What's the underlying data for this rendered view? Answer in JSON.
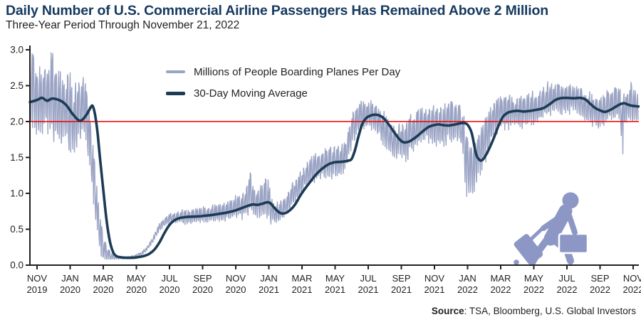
{
  "header": {
    "title": "Daily Number of U.S. Commercial Airline Passengers Has Remained Above 2 Million",
    "subtitle": "Three-Year Period Through November 21, 2022"
  },
  "source": {
    "label": "Source",
    "rest": ": TSA, Bloomberg, U.S. Global Investors"
  },
  "colors": {
    "title": "#163a5f",
    "daily_line": "#9ba4c4",
    "ma_line": "#1c3b55",
    "reference_line": "#ee0000",
    "axis": "#231f20",
    "traveler_icon": "#8c97c5",
    "background": "#ffffff"
  },
  "icons": {
    "traveler": "traveler-with-luggage-icon"
  },
  "chart_data": {
    "type": "line",
    "title": "Daily Number of U.S. Commercial Airline Passengers Has Remained Above 2 Million",
    "subtitle": "Three-Year Period Through November 21, 2022",
    "units": "millions of passengers per day",
    "legend_position": "top-center-left",
    "grid": false,
    "series": [
      {
        "name": "Millions of People Boarding Planes Per Day",
        "kind": "daily",
        "color": "#9ba4c4",
        "width": 1.4
      },
      {
        "name": "30-Day Moving Average",
        "kind": "moving_average",
        "color": "#1c3b55",
        "width": 3.6
      }
    ],
    "reference_line": {
      "value": 2.0,
      "color": "#ee0000"
    },
    "y_axis": {
      "min": 0.0,
      "max": 3.0,
      "step": 0.5,
      "labels": [
        "0.0",
        "0.5",
        "1.0",
        "1.5",
        "2.0",
        "2.5",
        "3.0"
      ]
    },
    "x_axis": {
      "ticks": [
        {
          "m": "NOV",
          "y": "2019"
        },
        {
          "m": "JAN",
          "y": "2020"
        },
        {
          "m": "MAR",
          "y": "2020"
        },
        {
          "m": "MAY",
          "y": "2020"
        },
        {
          "m": "JUL",
          "y": "2020"
        },
        {
          "m": "SEP",
          "y": "2020"
        },
        {
          "m": "NOV",
          "y": "2020"
        },
        {
          "m": "JAN",
          "y": "2021"
        },
        {
          "m": "MAR",
          "y": "2021"
        },
        {
          "m": "MAY",
          "y": "2021"
        },
        {
          "m": "JUL",
          "y": "2021"
        },
        {
          "m": "SEP",
          "y": "2021"
        },
        {
          "m": "NOV",
          "y": "2021"
        },
        {
          "m": "JAN",
          "y": "2022"
        },
        {
          "m": "MAR",
          "y": "2022"
        },
        {
          "m": "MAY",
          "y": "2022"
        },
        {
          "m": "JUL",
          "y": "2022"
        },
        {
          "m": "SEP",
          "y": "2022"
        },
        {
          "m": "NOV",
          "y": "2022"
        }
      ]
    },
    "time_axis": {
      "t_unit": "months since Nov 2019",
      "start_t": -0.43,
      "end_t": 36.32
    },
    "moving_average_points": [
      [
        -0.43,
        2.27
      ],
      [
        0,
        2.3
      ],
      [
        0.3,
        2.33
      ],
      [
        0.6,
        2.29
      ],
      [
        0.9,
        2.32
      ],
      [
        1.2,
        2.31
      ],
      [
        1.5,
        2.28
      ],
      [
        1.8,
        2.22
      ],
      [
        2.1,
        2.12
      ],
      [
        2.4,
        2.04
      ],
      [
        2.6,
        2.01
      ],
      [
        2.8,
        2.04
      ],
      [
        3.0,
        2.1
      ],
      [
        3.2,
        2.18
      ],
      [
        3.35,
        2.22
      ],
      [
        3.5,
        2.1
      ],
      [
        3.65,
        1.85
      ],
      [
        3.8,
        1.5
      ],
      [
        4.0,
        1.05
      ],
      [
        4.2,
        0.62
      ],
      [
        4.4,
        0.33
      ],
      [
        4.6,
        0.18
      ],
      [
        4.8,
        0.125
      ],
      [
        5.1,
        0.108
      ],
      [
        5.5,
        0.102
      ],
      [
        5.9,
        0.105
      ],
      [
        6.2,
        0.115
      ],
      [
        6.5,
        0.13
      ],
      [
        6.8,
        0.16
      ],
      [
        7.1,
        0.22
      ],
      [
        7.4,
        0.32
      ],
      [
        7.7,
        0.45
      ],
      [
        8.0,
        0.56
      ],
      [
        8.3,
        0.625
      ],
      [
        8.6,
        0.655
      ],
      [
        9.0,
        0.67
      ],
      [
        9.4,
        0.675
      ],
      [
        9.8,
        0.68
      ],
      [
        10.2,
        0.69
      ],
      [
        10.6,
        0.7
      ],
      [
        11.0,
        0.715
      ],
      [
        11.4,
        0.73
      ],
      [
        11.8,
        0.75
      ],
      [
        12.2,
        0.78
      ],
      [
        12.6,
        0.815
      ],
      [
        13.0,
        0.845
      ],
      [
        13.3,
        0.84
      ],
      [
        13.6,
        0.855
      ],
      [
        13.9,
        0.875
      ],
      [
        14.1,
        0.86
      ],
      [
        14.4,
        0.78
      ],
      [
        14.7,
        0.725
      ],
      [
        15.0,
        0.725
      ],
      [
        15.3,
        0.77
      ],
      [
        15.6,
        0.85
      ],
      [
        15.9,
        0.97
      ],
      [
        16.2,
        1.07
      ],
      [
        16.5,
        1.16
      ],
      [
        16.8,
        1.25
      ],
      [
        17.1,
        1.32
      ],
      [
        17.4,
        1.375
      ],
      [
        17.7,
        1.415
      ],
      [
        18.0,
        1.435
      ],
      [
        18.4,
        1.44
      ],
      [
        18.8,
        1.455
      ],
      [
        19.0,
        1.48
      ],
      [
        19.2,
        1.6
      ],
      [
        19.4,
        1.78
      ],
      [
        19.6,
        1.94
      ],
      [
        19.8,
        2.03
      ],
      [
        20.1,
        2.08
      ],
      [
        20.5,
        2.095
      ],
      [
        20.8,
        2.07
      ],
      [
        21.0,
        2.03
      ],
      [
        21.3,
        1.94
      ],
      [
        21.6,
        1.84
      ],
      [
        21.9,
        1.75
      ],
      [
        22.15,
        1.71
      ],
      [
        22.45,
        1.72
      ],
      [
        22.75,
        1.76
      ],
      [
        23.05,
        1.815
      ],
      [
        23.35,
        1.875
      ],
      [
        23.65,
        1.925
      ],
      [
        23.95,
        1.95
      ],
      [
        24.25,
        1.96
      ],
      [
        24.55,
        1.95
      ],
      [
        24.85,
        1.945
      ],
      [
        25.15,
        1.955
      ],
      [
        25.45,
        1.97
      ],
      [
        25.75,
        1.98
      ],
      [
        26.0,
        1.955
      ],
      [
        26.25,
        1.84
      ],
      [
        26.5,
        1.56
      ],
      [
        26.7,
        1.47
      ],
      [
        26.9,
        1.465
      ],
      [
        27.15,
        1.55
      ],
      [
        27.4,
        1.67
      ],
      [
        27.65,
        1.81
      ],
      [
        27.9,
        1.96
      ],
      [
        28.15,
        2.07
      ],
      [
        28.4,
        2.12
      ],
      [
        28.65,
        2.14
      ],
      [
        29.0,
        2.15
      ],
      [
        29.4,
        2.14
      ],
      [
        29.8,
        2.15
      ],
      [
        30.2,
        2.165
      ],
      [
        30.6,
        2.19
      ],
      [
        31.0,
        2.25
      ],
      [
        31.3,
        2.3
      ],
      [
        31.6,
        2.325
      ],
      [
        32.0,
        2.33
      ],
      [
        32.4,
        2.325
      ],
      [
        32.8,
        2.33
      ],
      [
        33.1,
        2.31
      ],
      [
        33.4,
        2.25
      ],
      [
        33.7,
        2.19
      ],
      [
        34.0,
        2.155
      ],
      [
        34.3,
        2.135
      ],
      [
        34.6,
        2.16
      ],
      [
        34.9,
        2.2
      ],
      [
        35.2,
        2.24
      ],
      [
        35.45,
        2.255
      ],
      [
        35.7,
        2.235
      ],
      [
        35.95,
        2.22
      ],
      [
        36.32,
        2.21
      ]
    ],
    "daily_model": {
      "lead_months": 0.5,
      "floor": 0.085,
      "ceiling": 2.96,
      "weekly_pattern": [
        0.95,
        -0.6,
        -0.95,
        0.4,
        0.85,
        -1.0,
        0.8
      ],
      "amplitude_points": [
        [
          -0.43,
          0.42
        ],
        [
          0.5,
          0.44
        ],
        [
          1.0,
          0.46
        ],
        [
          1.5,
          0.45
        ],
        [
          2.0,
          0.44
        ],
        [
          2.5,
          0.42
        ],
        [
          3.0,
          0.4
        ],
        [
          3.3,
          0.36
        ],
        [
          3.6,
          0.3
        ],
        [
          4.0,
          0.18
        ],
        [
          4.4,
          0.08
        ],
        [
          4.8,
          0.03
        ],
        [
          5.3,
          0.015
        ],
        [
          6.0,
          0.018
        ],
        [
          6.5,
          0.025
        ],
        [
          7.0,
          0.035
        ],
        [
          7.5,
          0.05
        ],
        [
          8.0,
          0.06
        ],
        [
          8.5,
          0.07
        ],
        [
          9.0,
          0.09
        ],
        [
          10.0,
          0.1
        ],
        [
          11.0,
          0.11
        ],
        [
          12.0,
          0.13
        ],
        [
          12.9,
          0.18
        ],
        [
          13.9,
          0.18
        ],
        [
          14.5,
          0.13
        ],
        [
          15.3,
          0.14
        ],
        [
          16.0,
          0.16
        ],
        [
          17.0,
          0.18
        ],
        [
          18.0,
          0.19
        ],
        [
          19.0,
          0.19
        ],
        [
          20.0,
          0.18
        ],
        [
          21.0,
          0.19
        ],
        [
          21.5,
          0.2
        ],
        [
          22.5,
          0.24
        ],
        [
          23.5,
          0.22
        ],
        [
          24.5,
          0.24
        ],
        [
          25.0,
          0.26
        ],
        [
          26.0,
          0.28
        ],
        [
          26.8,
          0.28
        ],
        [
          27.5,
          0.24
        ],
        [
          28.5,
          0.2
        ],
        [
          29.5,
          0.2
        ],
        [
          30.5,
          0.2
        ],
        [
          31.5,
          0.19
        ],
        [
          32.5,
          0.18
        ],
        [
          33.5,
          0.19
        ],
        [
          34.5,
          0.2
        ],
        [
          35.5,
          0.21
        ],
        [
          36.32,
          0.23
        ]
      ],
      "holiday_up_spikes": [
        [
          -0.28,
          4,
          0.25
        ],
        [
          0.9,
          5,
          0.22
        ],
        [
          1.85,
          7,
          0.22
        ],
        [
          12.85,
          5,
          0.3
        ],
        [
          13.85,
          8,
          0.3
        ],
        [
          24.85,
          4,
          0.12
        ],
        [
          35.9,
          4,
          0.12
        ]
      ],
      "holiday_down_spikes": [
        [
          22.3,
          4,
          0.1
        ],
        [
          25.95,
          6,
          0.38
        ],
        [
          26.35,
          5,
          0.22
        ],
        [
          35.35,
          3,
          0.5
        ]
      ]
    }
  }
}
